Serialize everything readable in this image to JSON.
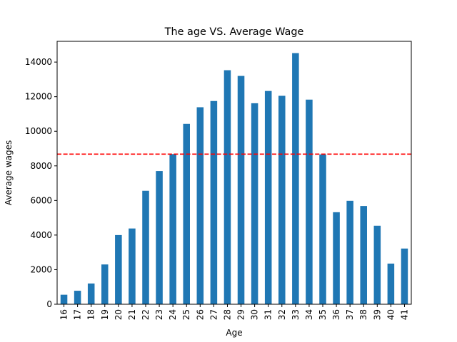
{
  "chart_data": {
    "type": "bar",
    "title": "The age VS. Average Wage",
    "xlabel": "Age",
    "ylabel": "Average wages",
    "categories": [
      "16",
      "17",
      "18",
      "19",
      "20",
      "21",
      "22",
      "23",
      "24",
      "25",
      "26",
      "27",
      "28",
      "29",
      "30",
      "31",
      "32",
      "33",
      "34",
      "35",
      "36",
      "37",
      "38",
      "39",
      "40",
      "41"
    ],
    "values": [
      550,
      780,
      1200,
      2300,
      4000,
      4380,
      6560,
      7700,
      8680,
      10430,
      11390,
      11750,
      13530,
      13200,
      11620,
      12330,
      12050,
      14520,
      11830,
      8660,
      5320,
      5980,
      5680,
      4540,
      2350,
      3220
    ],
    "ylim": [
      0,
      15200
    ],
    "yticks": [
      0,
      2000,
      4000,
      6000,
      8000,
      10000,
      12000,
      14000
    ],
    "ytick_labels": [
      "0",
      "2000",
      "4000",
      "6000",
      "8000",
      "10000",
      "12000",
      "14000"
    ],
    "reference_line": {
      "y": 8680,
      "style": "dashed",
      "color": "#ff0000"
    },
    "bar_color": "#1f77b4",
    "grid": false
  }
}
